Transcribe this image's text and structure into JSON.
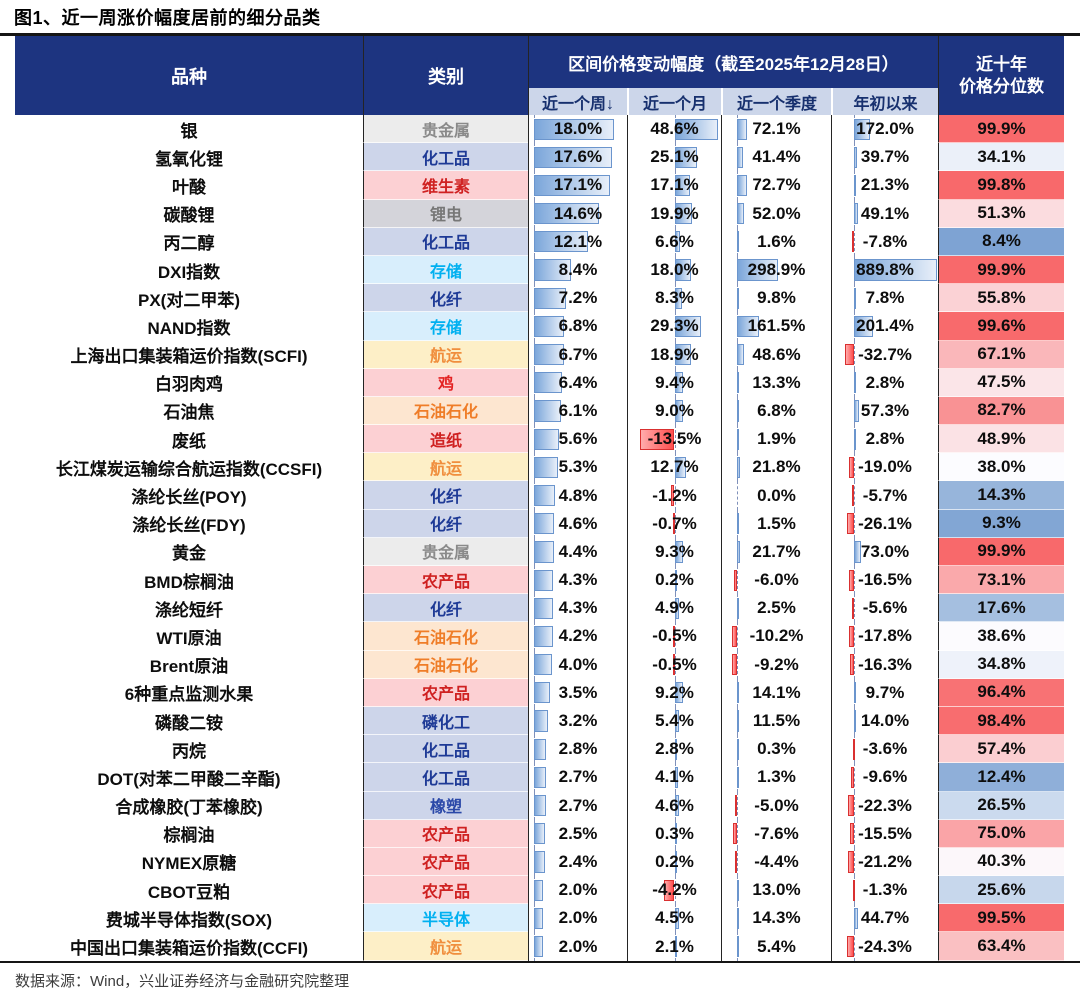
{
  "title": "图1、近一周涨价幅度居前的细分品类",
  "source": "数据来源：Wind，兴业证券经济与金融研究院整理",
  "header": {
    "variety": "品种",
    "category": "类别",
    "range": "区间价格变动幅度（截至2025年12月28日）",
    "subcols": [
      "近一个周↓",
      "近一个月",
      "近一个季度",
      "年初以来"
    ],
    "percentile_line1": "近十年",
    "percentile_line2": "价格分位数"
  },
  "colors": {
    "header_navy": "#1d3480",
    "subheader_bg": "#ccd6ea",
    "scale_min": "#5a8ac6",
    "scale_mid": "#fcfcff",
    "scale_max": "#f8696b",
    "scale_midpoint": 38,
    "bar_pos_border": "#6b95cd",
    "bar_neg_border": "#d93030"
  },
  "category_styles": {
    "贵金属": {
      "bg": "#ececec",
      "fg": "#8a8a8a"
    },
    "化工品": {
      "bg": "#cdd5ea",
      "fg": "#1e3a96"
    },
    "维生素": {
      "bg": "#fcd0d3",
      "fg": "#cf2121"
    },
    "锂电": {
      "bg": "#d4d4da",
      "fg": "#777777"
    },
    "存储": {
      "bg": "#d8eefc",
      "fg": "#00b0f0"
    },
    "化纤": {
      "bg": "#cdd5ea",
      "fg": "#1e3a96"
    },
    "航运": {
      "bg": "#fdefc7",
      "fg": "#f08e3d"
    },
    "鸡": {
      "bg": "#fcd0d3",
      "fg": "#e32222"
    },
    "石油石化": {
      "bg": "#fde6d0",
      "fg": "#ef7d28"
    },
    "造纸": {
      "bg": "#fcd0d3",
      "fg": "#cf2121"
    },
    "农产品": {
      "bg": "#fcd0d3",
      "fg": "#cf2121"
    },
    "磷化工": {
      "bg": "#cdd5ea",
      "fg": "#1e3a96"
    },
    "橡塑": {
      "bg": "#cdd5ea",
      "fg": "#2a48a8"
    },
    "半导体": {
      "bg": "#d8eefc",
      "fg": "#00b0f0"
    }
  },
  "bars": {
    "week": {
      "axis": 0.05,
      "posSpan": 0.82,
      "posMax": 18.0,
      "negSpan": 0.0,
      "negMax": 1
    },
    "month": {
      "axis": 0.5,
      "posSpan": 0.47,
      "posMax": 48.6,
      "negSpan": 0.37,
      "negMax": 13.5
    },
    "quarter": {
      "axis": 0.14,
      "posSpan": 0.37,
      "posMax": 298.9,
      "negSpan": 0.05,
      "negMax": 10.2
    },
    "ytd": {
      "axis": 0.205,
      "posSpan": 0.79,
      "posMax": 889.8,
      "negSpan": 0.08,
      "negMax": 32.7
    }
  },
  "chart_data": {
    "type": "table",
    "columns": [
      "品种",
      "类别",
      "近一个周",
      "近一个月",
      "近一个季度",
      "年初以来",
      "近十年价格分位数"
    ],
    "unit": "%",
    "rows": [
      {
        "name": "银",
        "category": "贵金属",
        "week": 18.0,
        "month": 48.6,
        "quarter": 72.1,
        "ytd": 172.0,
        "percentile": 99.9
      },
      {
        "name": "氢氧化锂",
        "category": "化工品",
        "week": 17.6,
        "month": 25.1,
        "quarter": 41.4,
        "ytd": 39.7,
        "percentile": 34.1
      },
      {
        "name": "叶酸",
        "category": "维生素",
        "week": 17.1,
        "month": 17.1,
        "quarter": 72.7,
        "ytd": 21.3,
        "percentile": 99.8
      },
      {
        "name": "碳酸锂",
        "category": "锂电",
        "week": 14.6,
        "month": 19.9,
        "quarter": 52.0,
        "ytd": 49.1,
        "percentile": 51.3
      },
      {
        "name": "丙二醇",
        "category": "化工品",
        "week": 12.1,
        "month": 6.6,
        "quarter": 1.6,
        "ytd": -7.8,
        "percentile": 8.4
      },
      {
        "name": "DXI指数",
        "category": "存储",
        "week": 8.4,
        "month": 18.0,
        "quarter": 298.9,
        "ytd": 889.8,
        "percentile": 99.9
      },
      {
        "name": "PX(对二甲苯)",
        "category": "化纤",
        "week": 7.2,
        "month": 8.3,
        "quarter": 9.8,
        "ytd": 7.8,
        "percentile": 55.8
      },
      {
        "name": "NAND指数",
        "category": "存储",
        "week": 6.8,
        "month": 29.3,
        "quarter": 161.5,
        "ytd": 201.4,
        "percentile": 99.6
      },
      {
        "name": "上海出口集装箱运价指数(SCFI)",
        "category": "航运",
        "week": 6.7,
        "month": 18.9,
        "quarter": 48.6,
        "ytd": -32.7,
        "percentile": 67.1
      },
      {
        "name": "白羽肉鸡",
        "category": "鸡",
        "week": 6.4,
        "month": 9.4,
        "quarter": 13.3,
        "ytd": 2.8,
        "percentile": 47.5
      },
      {
        "name": "石油焦",
        "category": "石油石化",
        "week": 6.1,
        "month": 9.0,
        "quarter": 6.8,
        "ytd": 57.3,
        "percentile": 82.7
      },
      {
        "name": "废纸",
        "category": "造纸",
        "week": 5.6,
        "month": -13.5,
        "quarter": 1.9,
        "ytd": 2.8,
        "percentile": 48.9
      },
      {
        "name": "长江煤炭运输综合航运指数(CCSFI)",
        "category": "航运",
        "week": 5.3,
        "month": 12.7,
        "quarter": 21.8,
        "ytd": -19.0,
        "percentile": 38.0
      },
      {
        "name": "涤纶长丝(POY)",
        "category": "化纤",
        "week": 4.8,
        "month": -1.2,
        "quarter": 0.0,
        "ytd": -5.7,
        "percentile": 14.3
      },
      {
        "name": "涤纶长丝(FDY)",
        "category": "化纤",
        "week": 4.6,
        "month": -0.7,
        "quarter": 1.5,
        "ytd": -26.1,
        "percentile": 9.3
      },
      {
        "name": "黄金",
        "category": "贵金属",
        "week": 4.4,
        "month": 9.3,
        "quarter": 21.7,
        "ytd": 73.0,
        "percentile": 99.9
      },
      {
        "name": "BMD棕榈油",
        "category": "农产品",
        "week": 4.3,
        "month": 0.2,
        "quarter": -6.0,
        "ytd": -16.5,
        "percentile": 73.1
      },
      {
        "name": "涤纶短纤",
        "category": "化纤",
        "week": 4.3,
        "month": 4.9,
        "quarter": 2.5,
        "ytd": -5.6,
        "percentile": 17.6
      },
      {
        "name": "WTI原油",
        "category": "石油石化",
        "week": 4.2,
        "month": -0.5,
        "quarter": -10.2,
        "ytd": -17.8,
        "percentile": 38.6
      },
      {
        "name": "Brent原油",
        "category": "石油石化",
        "week": 4.0,
        "month": -0.5,
        "quarter": -9.2,
        "ytd": -16.3,
        "percentile": 34.8
      },
      {
        "name": "6种重点监测水果",
        "category": "农产品",
        "week": 3.5,
        "month": 9.2,
        "quarter": 14.1,
        "ytd": 9.7,
        "percentile": 96.4
      },
      {
        "name": "磷酸二铵",
        "category": "磷化工",
        "week": 3.2,
        "month": 5.4,
        "quarter": 11.5,
        "ytd": 14.0,
        "percentile": 98.4
      },
      {
        "name": "丙烷",
        "category": "化工品",
        "week": 2.8,
        "month": 2.8,
        "quarter": 0.3,
        "ytd": -3.6,
        "percentile": 57.4
      },
      {
        "name": "DOT(对苯二甲酸二辛酯)",
        "category": "化工品",
        "week": 2.7,
        "month": 4.1,
        "quarter": 1.3,
        "ytd": -9.6,
        "percentile": 12.4
      },
      {
        "name": "合成橡胶(丁苯橡胶)",
        "category": "橡塑",
        "week": 2.7,
        "month": 4.6,
        "quarter": -5.0,
        "ytd": -22.3,
        "percentile": 26.5
      },
      {
        "name": "棕榈油",
        "category": "农产品",
        "week": 2.5,
        "month": 0.3,
        "quarter": -7.6,
        "ytd": -15.5,
        "percentile": 75.0
      },
      {
        "name": "NYMEX原糖",
        "category": "农产品",
        "week": 2.4,
        "month": 0.2,
        "quarter": -4.4,
        "ytd": -21.2,
        "percentile": 40.3
      },
      {
        "name": "CBOT豆粕",
        "category": "农产品",
        "week": 2.0,
        "month": -4.2,
        "quarter": 13.0,
        "ytd": -1.3,
        "percentile": 25.6
      },
      {
        "name": "费城半导体指数(SOX)",
        "category": "半导体",
        "week": 2.0,
        "month": 4.5,
        "quarter": 14.3,
        "ytd": 44.7,
        "percentile": 99.5
      },
      {
        "name": "中国出口集装箱运价指数(CCFI)",
        "category": "航运",
        "week": 2.0,
        "month": 2.1,
        "quarter": 5.4,
        "ytd": -24.3,
        "percentile": 63.4
      }
    ]
  }
}
